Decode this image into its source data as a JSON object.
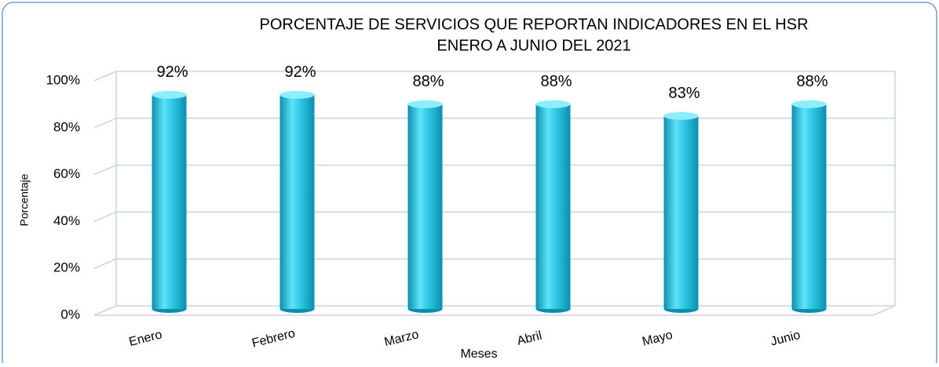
{
  "chart_data": {
    "type": "bar",
    "title": "PORCENTAJE DE SERVICIOS QUE REPORTAN INDICADORES EN EL  HSR",
    "subtitle": "ENERO A JUNIO DEL 2021",
    "x_label": "Meses",
    "y_label": "Porcentaje",
    "categories": [
      "Enero",
      "Febrero",
      "Marzo",
      "Abril",
      "Mayo",
      "Junio"
    ],
    "values": [
      92,
      92,
      88,
      88,
      83,
      88
    ],
    "value_labels": [
      "92%",
      "92%",
      "88%",
      "88%",
      "83%",
      "88%"
    ],
    "color": "#2cc6e6",
    "ylim": [
      0,
      100
    ],
    "yticks": [
      {
        "value": 0,
        "label": "0%"
      },
      {
        "value": 20,
        "label": "20%"
      },
      {
        "value": 40,
        "label": "40%"
      },
      {
        "value": 60,
        "label": "60%"
      },
      {
        "value": 80,
        "label": "80%"
      },
      {
        "value": 100,
        "label": "100%"
      }
    ],
    "grid": true
  }
}
